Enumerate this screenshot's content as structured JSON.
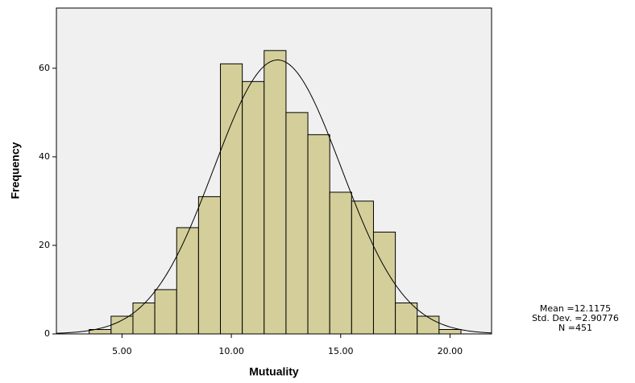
{
  "chart_data": {
    "type": "histogram",
    "x_label": "Mutuality",
    "y_label": "Frequency",
    "bins": [
      3.5,
      4.5,
      5.5,
      6.5,
      7.5,
      8.5,
      9.5,
      10.5,
      11.5,
      12.5,
      13.5,
      14.5,
      15.5,
      16.5,
      17.5,
      18.5,
      19.5,
      20.5
    ],
    "values": [
      1,
      4,
      7,
      10,
      24,
      31,
      61,
      57,
      64,
      50,
      45,
      32,
      30,
      23,
      7,
      4,
      1
    ],
    "color": "#d4cf9a",
    "xlim": [
      2,
      21.9
    ],
    "ylim": [
      0,
      73.6
    ],
    "xticks": [
      {
        "value": 5,
        "label": "5.00"
      },
      {
        "value": 10,
        "label": "10.00"
      },
      {
        "value": 15,
        "label": "15.00"
      },
      {
        "value": 20,
        "label": "20.00"
      }
    ],
    "yticks": [
      0,
      20,
      40,
      60
    ],
    "stats": {
      "values": [
        12.1175,
        2.90776,
        451
      ],
      "value_labels": [
        "Mean =12.1175",
        "Std. Dev. =2.90776",
        "N =451"
      ]
    }
  }
}
